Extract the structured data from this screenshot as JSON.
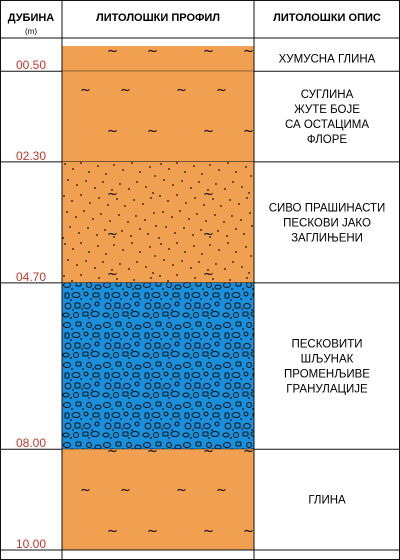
{
  "header": {
    "depth_title": "ДУБИНА",
    "depth_unit": "(m)",
    "profile_title": "ЛИТОЛОШКИ ПРОФИЛ",
    "description_title": "ЛИТОЛОШКИ ОПИС"
  },
  "depth_range": [
    0,
    10
  ],
  "layers": [
    {
      "top": 0.0,
      "bottom": 0.5,
      "bottom_label": "00.50",
      "description": [
        "ХУМУСНА ГЛИНА"
      ],
      "pattern": "clay",
      "color": "#f0a050"
    },
    {
      "top": 0.5,
      "bottom": 2.3,
      "bottom_label": "02.30",
      "description": [
        "СУГЛИНА",
        "ЖУТЕ БОЈЕ",
        "СА ОСТАЦИМА",
        "ФЛОРЕ"
      ],
      "pattern": "clay",
      "color": "#f0a050"
    },
    {
      "top": 2.3,
      "bottom": 4.7,
      "bottom_label": "04.70",
      "description": [
        "СИВО ПРАШИНАСТИ",
        "ПЕСКОВИ ЈАКО",
        "ЗАГЛИЊЕНИ"
      ],
      "pattern": "silty-sand",
      "color": "#f0a050"
    },
    {
      "top": 4.7,
      "bottom": 8.0,
      "bottom_label": "08.00",
      "description": [
        "ПЕСКОВИТИ",
        "ШЉУНАК",
        "ПРОМЕНЉИВЕ",
        "ГРАНУЛАЦИЈЕ"
      ],
      "pattern": "gravel",
      "color": "#1a8fdc"
    },
    {
      "top": 8.0,
      "bottom": 10.0,
      "bottom_label": "10.00",
      "description": [
        "ГЛИНА"
      ],
      "pattern": "clay",
      "color": "#f0a050"
    }
  ]
}
